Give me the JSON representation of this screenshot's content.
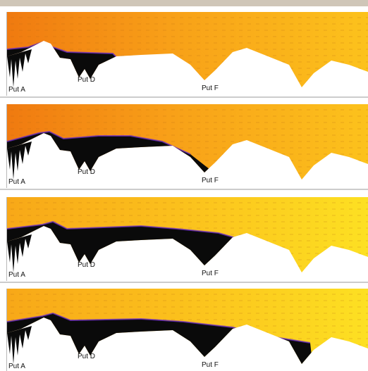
{
  "panels": [
    {
      "labels": [
        "Put A",
        "Put D",
        "Put F"
      ]
    },
    {
      "labels": [
        "Put A",
        "Put D",
        "Put F"
      ]
    },
    {
      "labels": [
        "Put A",
        "Put D",
        "Put F"
      ]
    },
    {
      "labels": [
        "Put A",
        "Put D",
        "Put F"
      ]
    }
  ]
}
